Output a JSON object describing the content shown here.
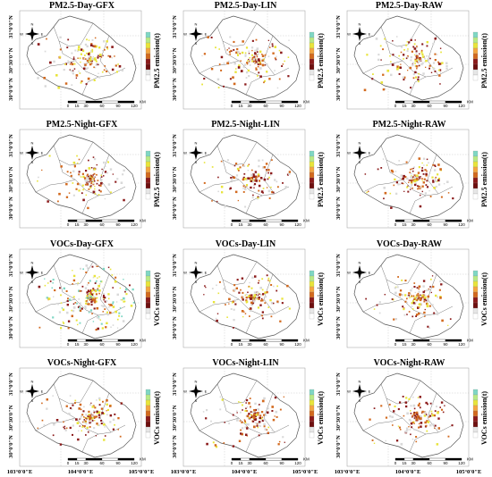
{
  "figure": {
    "lon_labels": [
      "103°0'0\"E",
      "104°0'0\"E",
      "105°0'0\"E"
    ],
    "lat_labels": [
      "31°0'0\"N",
      "30°30'0\"N",
      "30°0'0\"N"
    ],
    "north_arrow": {
      "n": "N",
      "s": "S",
      "e": "E",
      "w": "W"
    },
    "scale_bar": {
      "ticks": [
        "0",
        "15",
        "30",
        "60",
        "90",
        "120"
      ],
      "unit": "KM"
    },
    "colors": {
      "boundary": "#555555",
      "high": "#e8e43a",
      "mid": "#d2691e",
      "low": "#8b1a1a",
      "peak": "#7fd7c4"
    },
    "panels": [
      {
        "title": "PM2.5-Day-GFX",
        "cbar_label": "PM2.5 emission(t)",
        "intensity": 0.55
      },
      {
        "title": "PM2.5-Day-LIN",
        "cbar_label": "PM2.5 emission(t)",
        "intensity": 0.5
      },
      {
        "title": "PM2.5-Day-RAW",
        "cbar_label": "PM2.5 emission(t)",
        "intensity": 0.45
      },
      {
        "title": "PM2.5-Night-GFX",
        "cbar_label": "PM2.5 emission(t)",
        "intensity": 0.4
      },
      {
        "title": "PM2.5-Night-LIN",
        "cbar_label": "PM2.5 emission(t)",
        "intensity": 0.35
      },
      {
        "title": "PM2.5-Night-RAW",
        "cbar_label": "PM2.5 emission(t)",
        "intensity": 0.4
      },
      {
        "title": "VOCs-Day-GFX",
        "cbar_label": "VOCs emission(t)",
        "intensity": 0.95
      },
      {
        "title": "VOCs-Day-LIN",
        "cbar_label": "VOCs emission(t)",
        "intensity": 0.45
      },
      {
        "title": "VOCs-Day-RAW",
        "cbar_label": "VOCs emission(t)",
        "intensity": 0.4
      },
      {
        "title": "VOCs-Night-GFX",
        "cbar_label": "VOCs emission(t)",
        "intensity": 0.45
      },
      {
        "title": "VOCs-Night-LIN",
        "cbar_label": "VOCs emission(t)",
        "intensity": 0.35
      },
      {
        "title": "VOCs-Night-RAW",
        "cbar_label": "VOCs emission(t)",
        "intensity": 0.4
      }
    ]
  }
}
